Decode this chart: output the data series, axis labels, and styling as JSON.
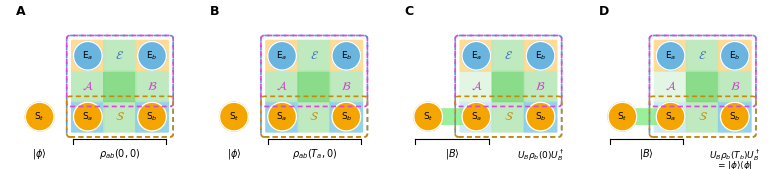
{
  "panels": [
    "A",
    "B",
    "C",
    "D"
  ],
  "cell_green": "#7dd87d",
  "cell_blue": "#87ceeb",
  "cell_orange_bg": "#ffd98a",
  "cell_light_green": "#b8e8b8",
  "border_blue": "#5599dd",
  "border_magenta": "#dd44dd",
  "border_orange": "#cc8800",
  "orange_circle": "#f5a500",
  "blue_circle": "#6ab4e0",
  "text_magenta": "#cc44cc",
  "text_blue_dark": "#4477bb",
  "text_orange": "#cc8800",
  "beam_green": "#88ee88"
}
